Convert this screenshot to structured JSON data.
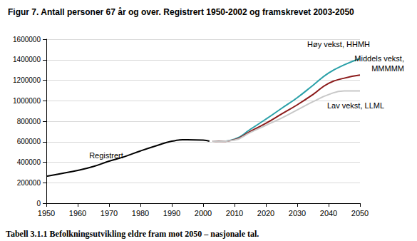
{
  "chart_data": {
    "type": "line",
    "title": "Figur 7. Antall personer 67 år og over. Registrert 1950-2002 og framskrevet 2003-2050",
    "caption": "Tabell 3.1.1 Befolkningsutvikling eldre fram mot 2050 – nasjonale tal.",
    "series": [
      {
        "name": "Registrert",
        "color": "#000000",
        "x": [
          1950,
          1955,
          1960,
          1965,
          1970,
          1975,
          1980,
          1985,
          1990,
          1995,
          2000,
          2002
        ],
        "values": [
          262000,
          290000,
          320000,
          358000,
          410000,
          455000,
          510000,
          560000,
          605000,
          620000,
          615000,
          605000
        ]
      },
      {
        "name": "Høy vekst, HHMH",
        "color": "#2aa0a8",
        "x": [
          2003,
          2005,
          2010,
          2015,
          2020,
          2025,
          2030,
          2035,
          2040,
          2045,
          2050
        ],
        "values": [
          605000,
          605000,
          625000,
          720000,
          820000,
          925000,
          1030000,
          1150000,
          1270000,
          1350000,
          1410000
        ]
      },
      {
        "name": "Middels vekst, MMMMM",
        "color": "#8b1a1a",
        "x": [
          2003,
          2005,
          2010,
          2015,
          2020,
          2025,
          2030,
          2035,
          2040,
          2045,
          2050
        ],
        "values": [
          605000,
          603000,
          620000,
          700000,
          780000,
          870000,
          960000,
          1060000,
          1170000,
          1220000,
          1250000
        ]
      },
      {
        "name": "Lav vekst, LLML",
        "color": "#c8c8c8",
        "x": [
          2003,
          2005,
          2010,
          2015,
          2020,
          2025,
          2030,
          2035,
          2040,
          2045,
          2050
        ],
        "values": [
          605000,
          602000,
          615000,
          690000,
          760000,
          830000,
          910000,
          990000,
          1060000,
          1095000,
          1095000
        ]
      }
    ],
    "xlim": [
      1950,
      2050
    ],
    "xticks": [
      1950,
      1960,
      1970,
      1980,
      1990,
      2000,
      2010,
      2020,
      2030,
      2040,
      2050
    ],
    "ylim": [
      0,
      1600000
    ],
    "yticks": [
      0,
      200000,
      400000,
      600000,
      800000,
      1000000,
      1200000,
      1400000,
      1600000
    ],
    "grid": true
  }
}
